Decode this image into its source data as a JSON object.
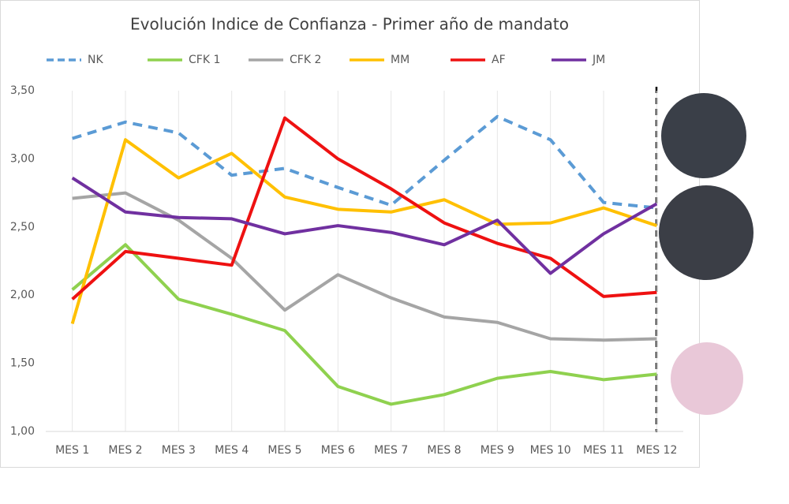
{
  "chart_data": {
    "type": "line",
    "title": "Evolución Indice de Confianza - Primer año de mandato",
    "categories": [
      "MES 1",
      "MES 2",
      "MES 3",
      "MES 4",
      "MES 5",
      "MES 6",
      "MES 7",
      "MES 8",
      "MES 9",
      "MES 10",
      "MES 11",
      "MES 12"
    ],
    "series": [
      {
        "name": "NK",
        "color": "#5b9bd5",
        "dashed": true,
        "values": [
          3.15,
          3.27,
          3.19,
          2.88,
          2.93,
          2.79,
          2.66,
          2.99,
          3.31,
          3.14,
          2.68,
          2.64
        ]
      },
      {
        "name": "CFK 1",
        "color": "#8fd14f",
        "values": [
          2.04,
          2.37,
          1.97,
          1.86,
          1.74,
          1.33,
          1.2,
          1.27,
          1.39,
          1.44,
          1.38,
          1.42
        ]
      },
      {
        "name": "CFK 2",
        "color": "#a5a5a5",
        "values": [
          2.71,
          2.75,
          2.55,
          2.27,
          1.89,
          2.15,
          1.98,
          1.84,
          1.8,
          1.68,
          1.67,
          1.68
        ]
      },
      {
        "name": "MM",
        "color": "#ffc000",
        "values": [
          1.79,
          3.14,
          2.86,
          3.04,
          2.72,
          2.63,
          2.61,
          2.7,
          2.52,
          2.53,
          2.64,
          2.51
        ]
      },
      {
        "name": "AF",
        "color": "#ee1111",
        "values": [
          1.97,
          2.32,
          2.27,
          2.22,
          3.3,
          3.0,
          2.78,
          2.53,
          2.38,
          2.27,
          1.99,
          2.02
        ]
      },
      {
        "name": "JM",
        "color": "#7030a0",
        "values": [
          2.86,
          2.61,
          2.57,
          2.56,
          2.45,
          2.51,
          2.46,
          2.37,
          2.55,
          2.16,
          2.45,
          2.67
        ]
      }
    ],
    "ylim": [
      1,
      3.5
    ],
    "yticks": [
      {
        "value": 1,
        "label": "1,00"
      },
      {
        "value": 1.5,
        "label": "1,50"
      },
      {
        "value": 2,
        "label": "2,00"
      },
      {
        "value": 2.5,
        "label": "2,50"
      },
      {
        "value": 3,
        "label": "3,00"
      },
      {
        "value": 3.5,
        "label": "3,50"
      }
    ],
    "grid": true
  }
}
